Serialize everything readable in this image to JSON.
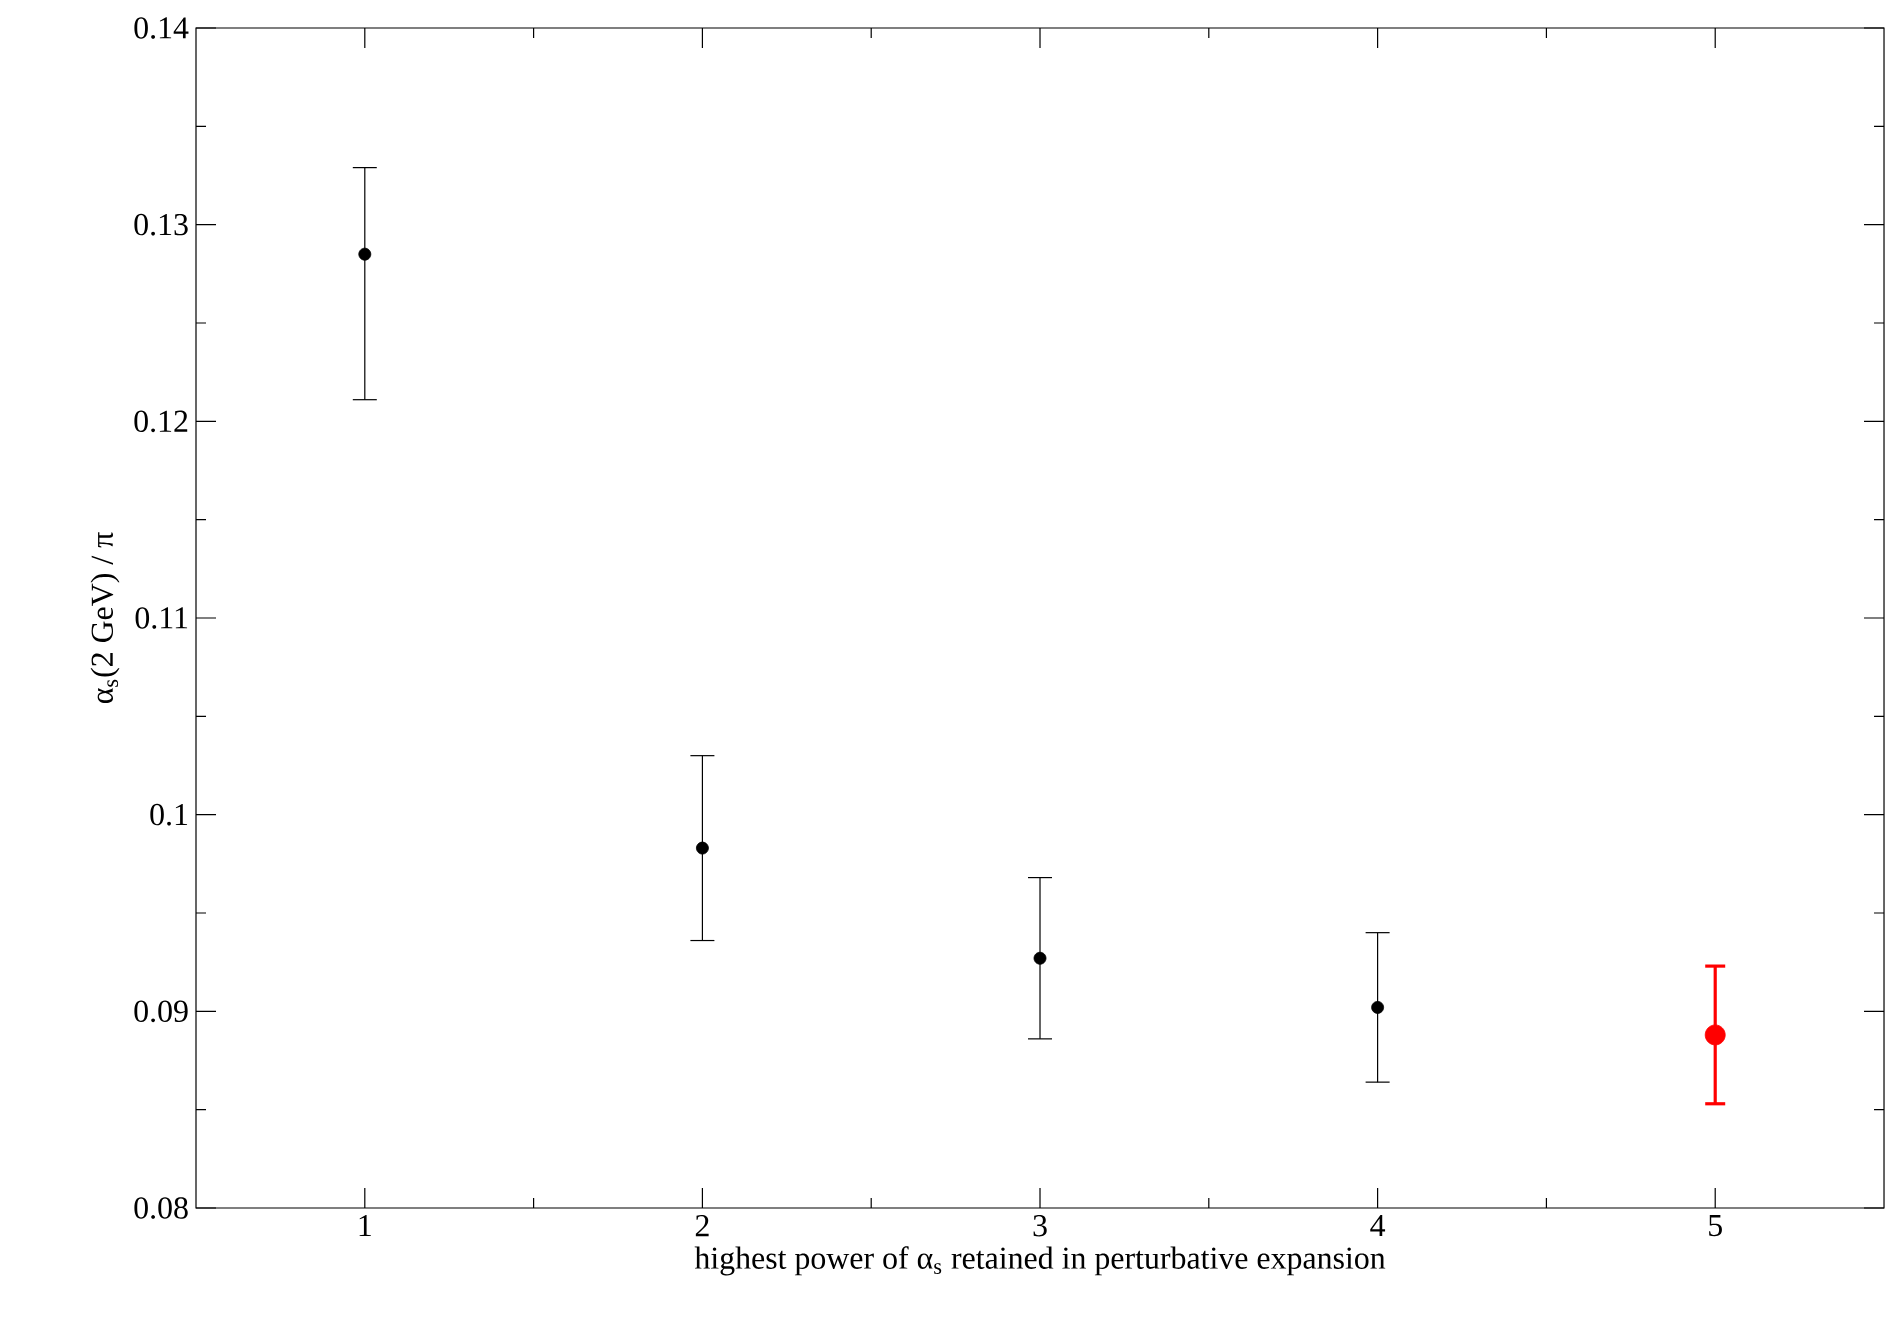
{
  "chart_data": {
    "type": "scatter",
    "xlabel": "highest power of α$_{s}$ retained in perturbative expansion",
    "ylabel": "α$_{s}$(2 GeV)  / π",
    "xlim": [
      0.5,
      5.5
    ],
    "xticks": [
      1,
      2,
      3,
      4,
      5
    ],
    "ylim": [
      0.08,
      0.14
    ],
    "yticks": [
      0.08,
      0.09,
      0.1,
      0.11,
      0.12,
      0.13,
      0.14
    ],
    "series": [
      {
        "color": "#000000",
        "x": [
          1,
          2,
          3,
          4
        ],
        "values": [
          0.1285,
          0.0983,
          0.0927,
          0.0902
        ],
        "errors": [
          [
            0.1211,
            0.1329
          ],
          [
            0.0936,
            0.103
          ],
          [
            0.0886,
            0.0968
          ],
          [
            0.0864,
            0.094
          ]
        ]
      },
      {
        "color": "#ff0000",
        "x": [
          5
        ],
        "values": [
          0.0888
        ],
        "errors": [
          [
            0.0853,
            0.0923
          ]
        ]
      }
    ]
  }
}
